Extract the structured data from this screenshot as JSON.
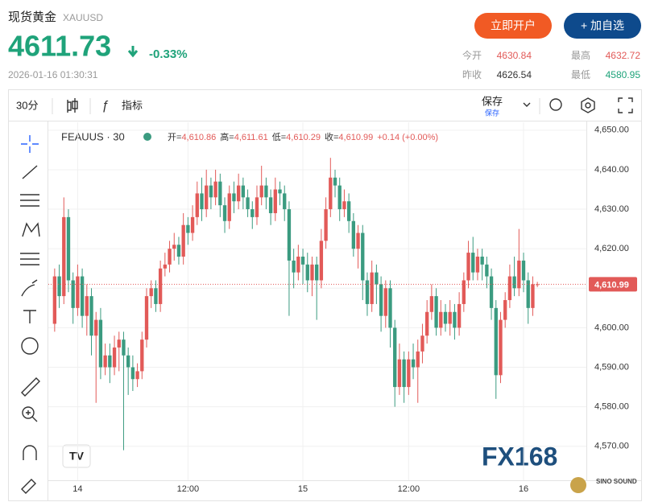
{
  "header": {
    "title": "现货黄金",
    "symbol": "XAUUSD",
    "price": "4611.73",
    "change": "-0.33%",
    "time": "2026-01-16 01:30:31",
    "buttons": [
      "立即开户",
      "+ 加自选"
    ],
    "stats": [
      {
        "label": "今开",
        "value": "4630.84"
      },
      {
        "label": "最高",
        "value": "4632.72"
      },
      {
        "label": "昨收",
        "value": "4626.54"
      },
      {
        "label": "最低",
        "value": "4580.95"
      }
    ]
  },
  "toolbar": {
    "interval": "30分",
    "indicators": "指标",
    "save": "保存",
    "save_sub": "保存"
  },
  "watermark": "FX168",
  "logo": "SINO SOUND",
  "chart_data": {
    "type": "candlestick",
    "title": "FEAUUS · 30",
    "legend": {
      "open_label": "开=",
      "open": "4,610.86",
      "high_label": "高=",
      "high": "4,611.61",
      "low_label": "低=",
      "low": "4,610.29",
      "close_label": "收=",
      "close": "4,610.99",
      "change": "+0.14 (+0.00%)"
    },
    "categories": [
      null,
      null,
      null,
      null,
      null,
      "14",
      null,
      null,
      null,
      null,
      null,
      null,
      null,
      null,
      null,
      null,
      null,
      null,
      null,
      null,
      null,
      null,
      null,
      null,
      null,
      null,
      null,
      null,
      null,
      "12:00",
      null,
      null,
      null,
      null,
      null,
      null,
      null,
      null,
      null,
      null,
      null,
      null,
      null,
      null,
      null,
      null,
      null,
      null,
      null,
      null,
      null,
      null,
      null,
      null,
      "15",
      null,
      null,
      null,
      null,
      null,
      null,
      null,
      null,
      null,
      null,
      null,
      null,
      null,
      null,
      null,
      null,
      null,
      null,
      null,
      null,
      null,
      null,
      "12:00",
      null,
      null,
      null,
      null,
      null,
      null,
      null,
      null,
      null,
      null,
      null,
      null,
      null,
      null,
      null,
      null,
      null,
      null,
      null,
      null,
      null,
      null,
      null,
      null,
      "16",
      null,
      null,
      null
    ],
    "open": [
      4601,
      4613,
      4608,
      4628,
      4612,
      4605,
      4613,
      4603,
      4608,
      4598,
      4602,
      4590,
      4593,
      4590,
      4595,
      4597,
      4593,
      4590,
      4587,
      4589,
      4597,
      4608,
      4610,
      4606,
      4615,
      4616,
      4620,
      4621,
      4618,
      4626,
      4624,
      4628,
      4634,
      4630,
      4636,
      4633,
      4637,
      4631,
      4627,
      4634,
      4632,
      4636,
      4633,
      4630,
      4628,
      4633,
      4636,
      4633,
      4629,
      4635,
      4634,
      4630,
      4617,
      4614,
      4618,
      4616,
      4612,
      4616,
      4612,
      4622,
      4630,
      4638,
      4636,
      4630,
      4632,
      4627,
      4620,
      4624,
      4612,
      4606,
      4614,
      4611,
      4603,
      4610,
      4600,
      4585,
      4592,
      4585,
      4592,
      4590,
      4594,
      4598,
      4604,
      4608,
      4600,
      4604,
      4601,
      4604,
      4600,
      4606,
      4612,
      4619,
      4614,
      4618,
      4616,
      4613,
      4605,
      4588,
      4602,
      4607,
      4613,
      4610,
      4617,
      4612,
      4605,
      4610.86
    ],
    "high": [
      4615,
      4616,
      4633,
      4630,
      4614,
      4616,
      4615,
      4611,
      4610,
      4604,
      4605,
      4596,
      4596,
      4598,
      4599,
      4599,
      4595,
      4593,
      4591,
      4599,
      4610,
      4612,
      4612,
      4617,
      4619,
      4622,
      4624,
      4623,
      4629,
      4628,
      4631,
      4637,
      4638,
      4640,
      4638,
      4640,
      4639,
      4633,
      4636,
      4637,
      4639,
      4638,
      4635,
      4632,
      4636,
      4641,
      4638,
      4635,
      4638,
      4637,
      4636,
      4632,
      4620,
      4621,
      4620,
      4619,
      4618,
      4618,
      4625,
      4633,
      4643,
      4640,
      4638,
      4635,
      4634,
      4629,
      4626,
      4626,
      4614,
      4617,
      4616,
      4613,
      4612,
      4612,
      4602,
      4596,
      4594,
      4594,
      4596,
      4597,
      4601,
      4607,
      4611,
      4610,
      4607,
      4606,
      4607,
      4606,
      4609,
      4614,
      4622,
      4623,
      4620,
      4620,
      4618,
      4615,
      4607,
      4604,
      4609,
      4616,
      4618,
      4625,
      4619,
      4614,
      4613,
      4611.61
    ],
    "low": [
      4599,
      4605,
      4606,
      4609,
      4601,
      4603,
      4600,
      4598,
      4593,
      4581,
      4587,
      4588,
      4586,
      4588,
      4589,
      4569,
      4583,
      4584,
      4585,
      4587,
      4595,
      4605,
      4604,
      4604,
      4613,
      4614,
      4617,
      4616,
      4616,
      4621,
      4622,
      4626,
      4627,
      4628,
      4630,
      4631,
      4628,
      4624,
      4625,
      4629,
      4630,
      4630,
      4628,
      4625,
      4626,
      4631,
      4630,
      4626,
      4627,
      4631,
      4627,
      4603,
      4610,
      4612,
      4611,
      4609,
      4608,
      4602,
      4610,
      4620,
      4628,
      4633,
      4627,
      4628,
      4624,
      4618,
      4615,
      4607,
      4603,
      4604,
      4606,
      4599,
      4600,
      4595,
      4580,
      4583,
      4581,
      4583,
      4587,
      4581,
      4591,
      4596,
      4602,
      4598,
      4598,
      4599,
      4598,
      4597,
      4598,
      4604,
      4610,
      4612,
      4612,
      4612,
      4610,
      4602,
      4582,
      4586,
      4600,
      4605,
      4608,
      4608,
      4609,
      4601,
      4603,
      4610.29
    ],
    "close": [
      4613,
      4608,
      4628,
      4612,
      4605,
      4613,
      4603,
      4608,
      4598,
      4602,
      4590,
      4593,
      4590,
      4595,
      4597,
      4593,
      4590,
      4587,
      4589,
      4597,
      4608,
      4610,
      4606,
      4615,
      4616,
      4620,
      4621,
      4618,
      4626,
      4624,
      4628,
      4634,
      4630,
      4636,
      4633,
      4637,
      4631,
      4627,
      4634,
      4632,
      4636,
      4633,
      4630,
      4628,
      4633,
      4636,
      4633,
      4629,
      4635,
      4634,
      4630,
      4617,
      4614,
      4618,
      4616,
      4612,
      4616,
      4612,
      4622,
      4630,
      4638,
      4636,
      4630,
      4632,
      4627,
      4620,
      4624,
      4612,
      4606,
      4614,
      4611,
      4603,
      4610,
      4600,
      4585,
      4592,
      4585,
      4592,
      4590,
      4594,
      4598,
      4604,
      4608,
      4600,
      4604,
      4601,
      4604,
      4600,
      4606,
      4612,
      4619,
      4614,
      4618,
      4616,
      4613,
      4605,
      4588,
      4602,
      4607,
      4613,
      4610,
      4617,
      4612,
      4605,
      4611,
      4610.99
    ],
    "up_color": "#e25a58",
    "down_color": "#3b9b80",
    "last_price": 4610.99,
    "last_price_label": "4,610.99",
    "ylim": [
      4561.4,
      4652.0
    ],
    "yticks": [
      {
        "value": 4570,
        "label": "4,570.00"
      },
      {
        "value": 4580,
        "label": "4,580.00"
      },
      {
        "value": 4590,
        "label": "4,590.00"
      },
      {
        "value": 4600,
        "label": "4,600.00"
      },
      {
        "value": 4610,
        "label": "4,610.00"
      },
      {
        "value": 4620,
        "label": "4,620.00"
      },
      {
        "value": 4630,
        "label": "4,630.00"
      },
      {
        "value": 4640,
        "label": "4,640.00"
      },
      {
        "value": 4650,
        "label": "4,650.00"
      }
    ],
    "grid": true
  }
}
